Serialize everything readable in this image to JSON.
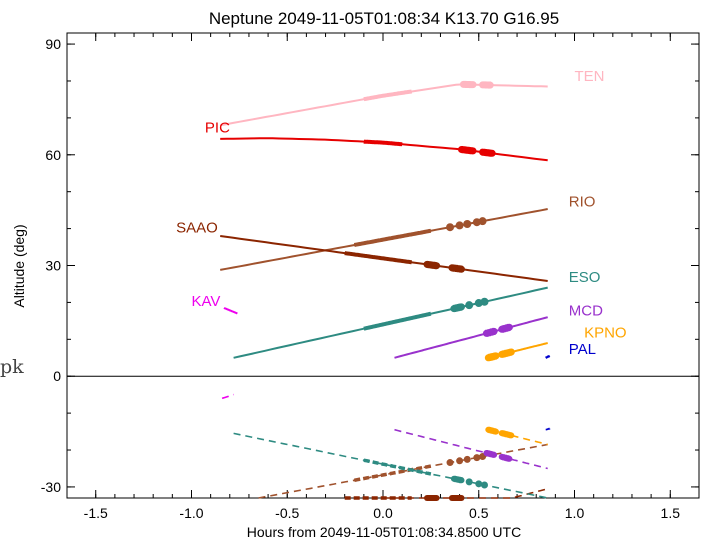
{
  "chart_data": {
    "type": "line",
    "title": "Neptune 2049-11-05T01:08:34  K13.70  G16.95",
    "xlabel": "Hours from 2049-11-05T01:08:34.8500 UTC",
    "ylabel": "Altitude (deg)",
    "xlim": [
      -1.65,
      1.65
    ],
    "ylim": [
      -33,
      93
    ],
    "xticks": [
      -1.5,
      -1.0,
      -0.5,
      0.0,
      0.5,
      1.0,
      1.5
    ],
    "xtick_labels": [
      "-1.5",
      "-1.0",
      "-0.5",
      "0.0",
      "0.5",
      "1.0",
      "1.5"
    ],
    "yticks": [
      -30,
      0,
      30,
      60,
      90
    ],
    "ytick_labels": [
      "-30",
      "0",
      "30",
      "60",
      "90"
    ],
    "zero_line": true,
    "grid": false,
    "side_note": "pk",
    "series": [
      {
        "name": "TEN",
        "color": "#ffb6c1",
        "label_at": [
          1.0,
          80
        ],
        "above": {
          "x": [
            -0.85,
            0.0,
            0.4,
            0.86
          ],
          "y": [
            68,
            76,
            79.1,
            78.5
          ]
        },
        "segments": [
          [
            -0.1,
            0.15
          ]
        ],
        "blobs": [
          [
            0.42,
            0.47
          ],
          [
            0.52,
            0.56
          ]
        ]
      },
      {
        "name": "PIC",
        "color": "#e60000",
        "label_at": [
          -0.93,
          66
        ],
        "above": {
          "x": [
            -0.85,
            -0.6,
            -0.3,
            0.0,
            0.4,
            0.86
          ],
          "y": [
            64.3,
            64.5,
            64.1,
            63.3,
            61.5,
            58.5
          ]
        },
        "segments": [
          [
            -0.1,
            0.1
          ]
        ],
        "blobs": [
          [
            0.41,
            0.47
          ],
          [
            0.52,
            0.57
          ]
        ]
      },
      {
        "name": "RIO",
        "color": "#a0522d",
        "label_at": [
          0.97,
          46
        ],
        "above": {
          "x": [
            -0.85,
            0.86
          ],
          "y": [
            28.8,
            45.3
          ]
        },
        "below": {
          "x": [
            -0.65,
            0.86
          ],
          "y": [
            -33,
            -18.5
          ]
        },
        "segments": [
          [
            -0.15,
            0.25
          ]
        ],
        "dots": [
          0.35,
          0.4,
          0.44,
          0.49,
          0.52
        ]
      },
      {
        "name": "SAAO",
        "color": "#8b2500",
        "label_at": [
          -1.08,
          39
        ],
        "above": {
          "x": [
            -0.85,
            0.86
          ],
          "y": [
            38,
            25.8
          ]
        },
        "below": {
          "x": [
            0.0,
            0.86
          ],
          "y": [
            -42,
            -30.5
          ]
        },
        "segments": [
          [
            -0.2,
            0.15
          ]
        ],
        "blobs": [
          [
            0.23,
            0.28
          ],
          [
            0.36,
            0.41
          ]
        ]
      },
      {
        "name": "ESO",
        "color": "#2e8b82",
        "label_at": [
          0.97,
          25.5
        ],
        "above": {
          "x": [
            -0.78,
            0.86
          ],
          "y": [
            5,
            24
          ]
        },
        "below": {
          "x": [
            -0.78,
            0.86
          ],
          "y": [
            -15.5,
            -33
          ]
        },
        "segments": [
          [
            -0.1,
            0.25
          ]
        ],
        "blobs": [
          [
            0.37,
            0.41
          ]
        ],
        "dots": [
          0.45,
          0.5,
          0.53
        ]
      },
      {
        "name": "MCD",
        "color": "#9932cc",
        "label_at": [
          0.97,
          16.5
        ],
        "above": {
          "x": [
            0.06,
            0.86
          ],
          "y": [
            5,
            16
          ]
        },
        "below": {
          "x": [
            0.06,
            0.86
          ],
          "y": [
            -14.5,
            -25
          ]
        },
        "blobs": [
          [
            0.54,
            0.58
          ],
          [
            0.62,
            0.66
          ]
        ]
      },
      {
        "name": "KPNO",
        "color": "#ffa500",
        "label_at": [
          1.05,
          10.5
        ],
        "above": {
          "x": [
            0.55,
            0.86
          ],
          "y": [
            5,
            9
          ]
        },
        "below": {
          "x": [
            0.55,
            0.86
          ],
          "y": [
            -14.5,
            -18.5
          ]
        },
        "blobs": [
          [
            0.55,
            0.59
          ],
          [
            0.62,
            0.67
          ]
        ]
      },
      {
        "name": "PAL",
        "color": "#0000cd",
        "label_at": [
          0.97,
          6
        ],
        "above": {
          "x": [
            0.85,
            0.87
          ],
          "y": [
            5,
            5.5
          ]
        },
        "below": {
          "x": [
            0.85,
            0.87
          ],
          "y": [
            -14.5,
            -14.2
          ]
        }
      },
      {
        "name": "KAV",
        "color": "#ee00ee",
        "label_at": [
          -1.0,
          19
        ],
        "above": {
          "x": [
            -0.83,
            -0.76
          ],
          "y": [
            18.5,
            17
          ]
        },
        "below": {
          "x": [
            -0.84,
            -0.78
          ],
          "y": [
            -6,
            -5
          ]
        }
      }
    ]
  }
}
